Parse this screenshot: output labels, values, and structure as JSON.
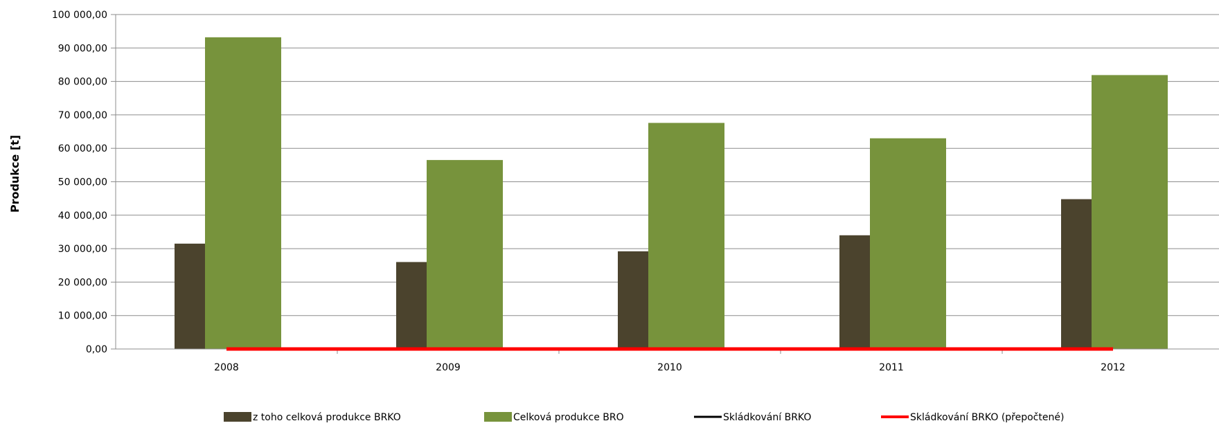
{
  "chart_data": {
    "type": "bar",
    "title": "",
    "xlabel": "",
    "ylabel": "Produkce [t]",
    "ylim": [
      0,
      100000
    ],
    "y_tick_step": 10000,
    "y_tick_labels": [
      "0,00",
      "10 000,00",
      "20 000,00",
      "30 000,00",
      "40 000,00",
      "50 000,00",
      "60 000,00",
      "70 000,00",
      "80 000,00",
      "90 000,00",
      "100 000,00"
    ],
    "grid": true,
    "legend_position": "bottom",
    "categories": [
      "2008",
      "2009",
      "2010",
      "2011",
      "2012"
    ],
    "series": [
      {
        "name": "z toho celková produkce BRKO",
        "kind": "bar",
        "color": "#4b432d",
        "values": [
          31500,
          26000,
          29200,
          34000,
          44800
        ]
      },
      {
        "name": "Celková produkce BRO",
        "kind": "bar",
        "color": "#77933c",
        "values": [
          93200,
          56500,
          67600,
          63000,
          81900
        ]
      },
      {
        "name": "Skládkování BRKO",
        "kind": "line",
        "color": "#000000",
        "values": [
          0,
          0,
          0,
          0,
          0
        ]
      },
      {
        "name": "Skládkování BRKO (přepočtené)",
        "kind": "line",
        "color": "#ff0000",
        "values": [
          0,
          0,
          0,
          0,
          0
        ]
      }
    ]
  }
}
